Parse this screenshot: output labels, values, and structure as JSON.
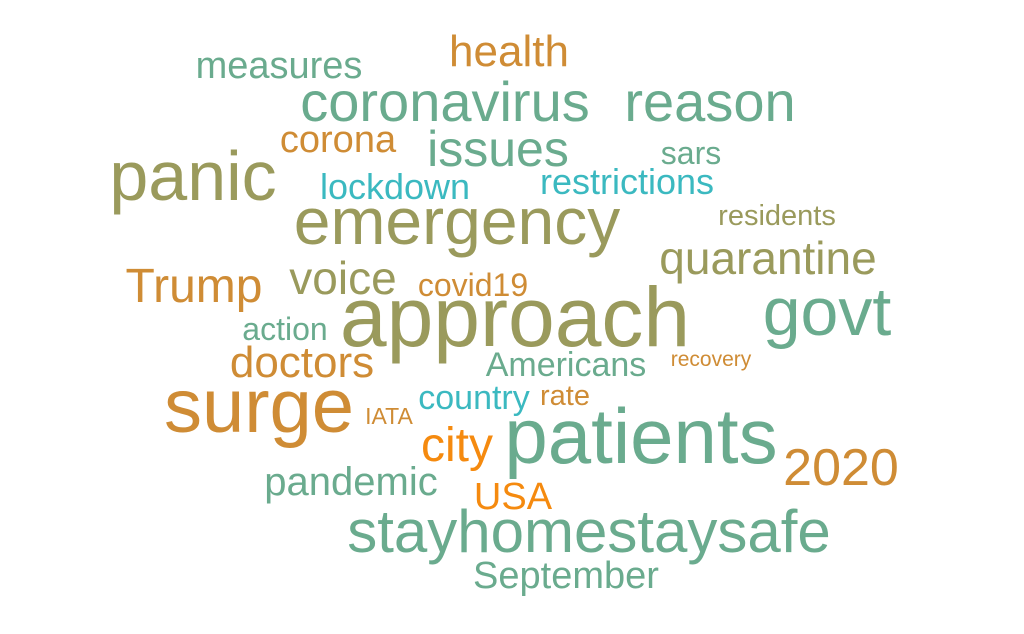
{
  "palette": {
    "sea_green": "#6aab8e",
    "olive": "#9a9a5c",
    "orange_brown": "#cf8c35",
    "teal": "#3bb9c0",
    "orange": "#f58a0f"
  },
  "words": [
    {
      "text": "health",
      "color": "#cf8c35",
      "size": "large"
    },
    {
      "text": "measures",
      "color": "#6aab8e",
      "size": "medium"
    },
    {
      "text": "coronavirus",
      "color": "#6aab8e",
      "size": "xlarge"
    },
    {
      "text": "reason",
      "color": "#6aab8e",
      "size": "xlarge"
    },
    {
      "text": "corona",
      "color": "#cf8c35",
      "size": "medium"
    },
    {
      "text": "issues",
      "color": "#6aab8e",
      "size": "large"
    },
    {
      "text": "sars",
      "color": "#6aab8e",
      "size": "small"
    },
    {
      "text": "panic",
      "color": "#9a9a5c",
      "size": "xxlarge"
    },
    {
      "text": "lockdown",
      "color": "#3bb9c0",
      "size": "medium"
    },
    {
      "text": "restrictions",
      "color": "#3bb9c0",
      "size": "medium"
    },
    {
      "text": "emergency",
      "color": "#9a9a5c",
      "size": "xxlarge"
    },
    {
      "text": "residents",
      "color": "#9a9a5c",
      "size": "small"
    },
    {
      "text": "quarantine",
      "color": "#9a9a5c",
      "size": "large"
    },
    {
      "text": "Trump",
      "color": "#cf8c35",
      "size": "large"
    },
    {
      "text": "voice",
      "color": "#9a9a5c",
      "size": "large"
    },
    {
      "text": "covid19",
      "color": "#cf8c35",
      "size": "small"
    },
    {
      "text": "approach",
      "color": "#9a9a5c",
      "size": "xxxlarge"
    },
    {
      "text": "govt",
      "color": "#6aab8e",
      "size": "xxlarge"
    },
    {
      "text": "action",
      "color": "#6aab8e",
      "size": "small"
    },
    {
      "text": "doctors",
      "color": "#cf8c35",
      "size": "large"
    },
    {
      "text": "Americans",
      "color": "#6aab8e",
      "size": "medium"
    },
    {
      "text": "recovery",
      "color": "#cf8c35",
      "size": "tiny"
    },
    {
      "text": "surge",
      "color": "#cf8c35",
      "size": "xxxlarge"
    },
    {
      "text": "country",
      "color": "#3bb9c0",
      "size": "medium"
    },
    {
      "text": "rate",
      "color": "#cf8c35",
      "size": "small"
    },
    {
      "text": "IATA",
      "color": "#cf8c35",
      "size": "tiny"
    },
    {
      "text": "patients",
      "color": "#6aab8e",
      "size": "xxxlarge"
    },
    {
      "text": "city",
      "color": "#f58a0f",
      "size": "large"
    },
    {
      "text": "2020",
      "color": "#cf8c35",
      "size": "large"
    },
    {
      "text": "pandemic",
      "color": "#6aab8e",
      "size": "medium"
    },
    {
      "text": "USA",
      "color": "#f58a0f",
      "size": "medium"
    },
    {
      "text": "stayhomestaysafe",
      "color": "#6aab8e",
      "size": "xlarge"
    },
    {
      "text": "September",
      "color": "#6aab8e",
      "size": "medium"
    }
  ]
}
